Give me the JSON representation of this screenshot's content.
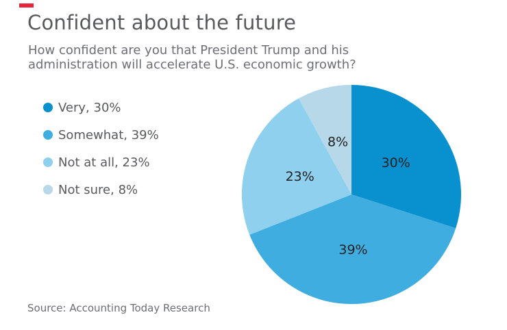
{
  "accent_color": "#e5233d",
  "header": {
    "title": "Confident about the future",
    "subtitle_lines": [
      "How confident are you that President Trump and his",
      "administration will accelerate U.S. economic growth?"
    ]
  },
  "legend": {
    "items": [
      {
        "label": "Very, 30%"
      },
      {
        "label": "Somewhat, 39%"
      },
      {
        "label": "Not at all, 23%"
      },
      {
        "label": "Not sure, 8%"
      }
    ]
  },
  "chart_data": {
    "type": "pie",
    "title": "Confident about the future",
    "question": "How confident are you that President Trump and his administration will accelerate U.S. economic growth?",
    "categories": [
      "Very",
      "Somewhat",
      "Not at all",
      "Not sure"
    ],
    "values": [
      30,
      39,
      23,
      8
    ],
    "unit": "%",
    "slice_labels": [
      "30%",
      "39%",
      "23%",
      "8%"
    ],
    "colors": [
      "#0990cf",
      "#3fade0",
      "#8fd0ee",
      "#b6d8e9"
    ],
    "start_angle_deg": 0,
    "direction": "clockwise",
    "legend_position": "left",
    "source": "Accounting Today Research"
  },
  "footer": {
    "source": "Source: Accounting Today Research"
  }
}
